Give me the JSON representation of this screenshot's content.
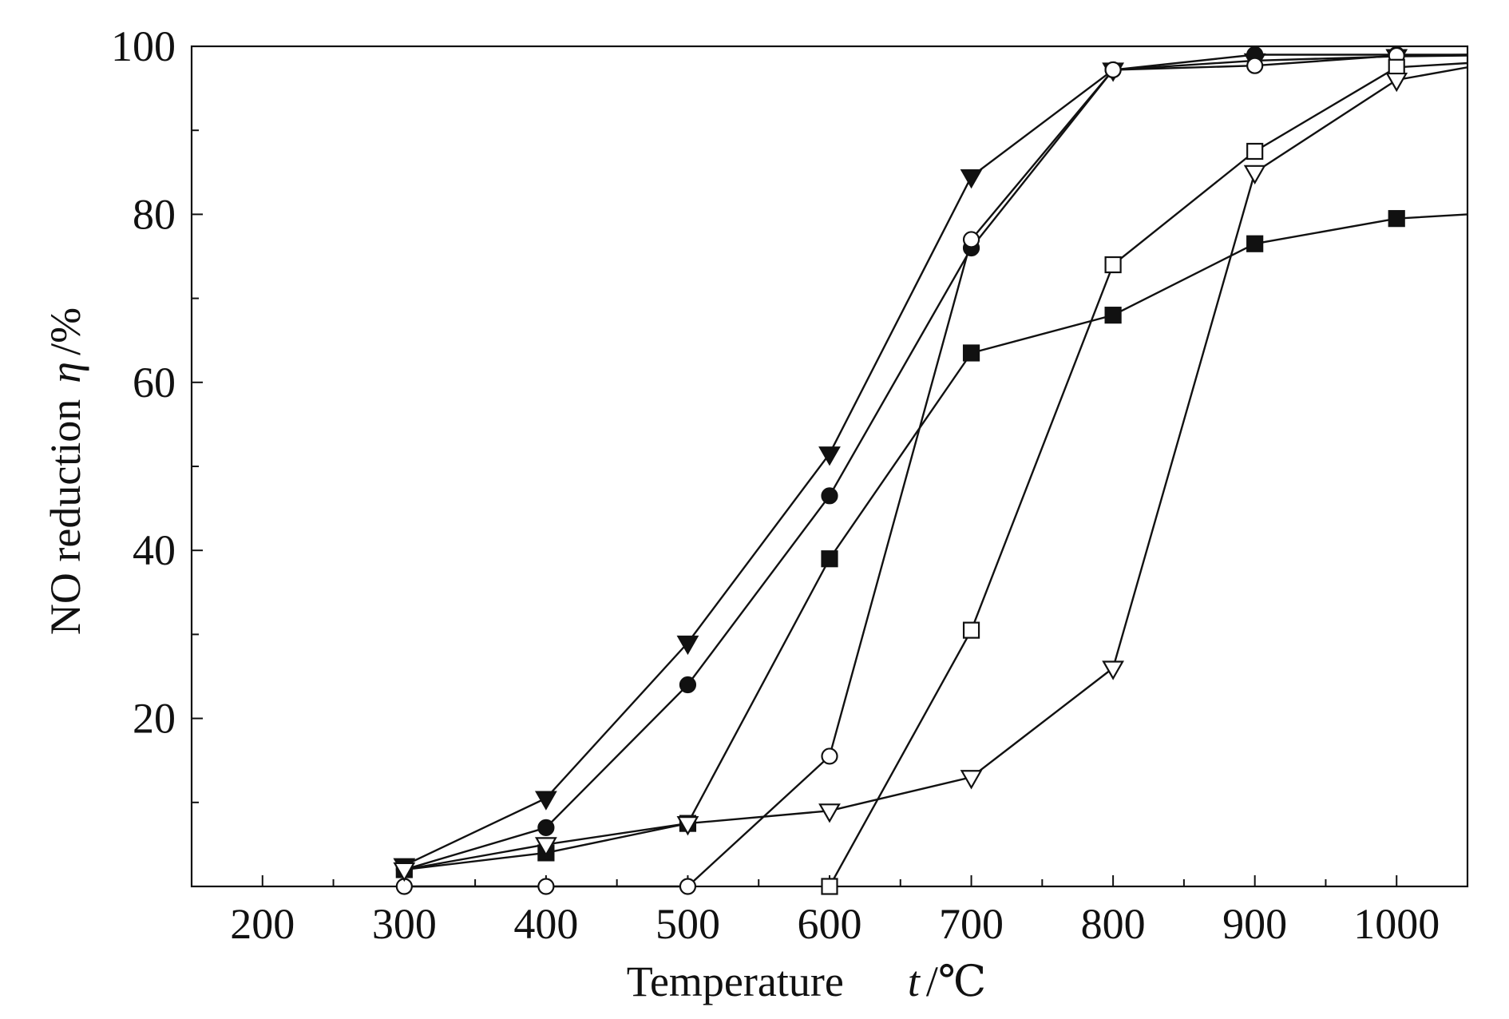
{
  "chart_data": {
    "type": "line",
    "title": "",
    "xlabel": {
      "prefix": "Temperature",
      "symbol": "t",
      "unit": "/℃"
    },
    "ylabel": {
      "prefix": "NO reduction",
      "symbol": "η",
      "unit": "/%"
    },
    "xlim": [
      150,
      1050
    ],
    "ylim": [
      0,
      100
    ],
    "xticks": [
      200,
      300,
      400,
      500,
      600,
      700,
      800,
      900,
      1000
    ],
    "yticks": [
      20,
      40,
      60,
      80,
      100
    ],
    "grid": false,
    "legend": "none",
    "series": [
      {
        "marker": "triangle-down-filled",
        "x": [
          300,
          400,
          500,
          600,
          700,
          800,
          900,
          1000,
          1050
        ],
        "y": [
          2.5,
          10.5,
          29,
          51.5,
          84.5,
          97.2,
          98.3,
          98.8,
          98.9
        ]
      },
      {
        "marker": "circle-filled",
        "x": [
          300,
          400,
          500,
          600,
          700,
          800,
          900,
          1000,
          1050
        ],
        "y": [
          2,
          7,
          24,
          46.5,
          76,
          97.2,
          99,
          99,
          99
        ]
      },
      {
        "marker": "circle-open",
        "x": [
          300,
          400,
          500,
          600,
          700,
          800,
          900,
          1000,
          1050
        ],
        "y": [
          0,
          0,
          0,
          15.5,
          77,
          97.2,
          97.7,
          98.9,
          99
        ]
      },
      {
        "marker": "square-filled",
        "x": [
          300,
          400,
          500,
          600,
          700,
          800,
          900,
          1000,
          1050
        ],
        "y": [
          2,
          4,
          7.5,
          39,
          63.5,
          68,
          76.5,
          79.5,
          80
        ]
      },
      {
        "marker": "square-open",
        "x": [
          600,
          700,
          800,
          900,
          1000,
          1050
        ],
        "y": [
          0,
          30.5,
          74,
          87.5,
          97.5,
          98
        ]
      },
      {
        "marker": "triangle-down-open",
        "x": [
          300,
          400,
          500,
          600,
          700,
          800,
          900,
          1000,
          1050
        ],
        "y": [
          2,
          5,
          7.5,
          9,
          13,
          26,
          85,
          96,
          97.5
        ]
      }
    ]
  }
}
